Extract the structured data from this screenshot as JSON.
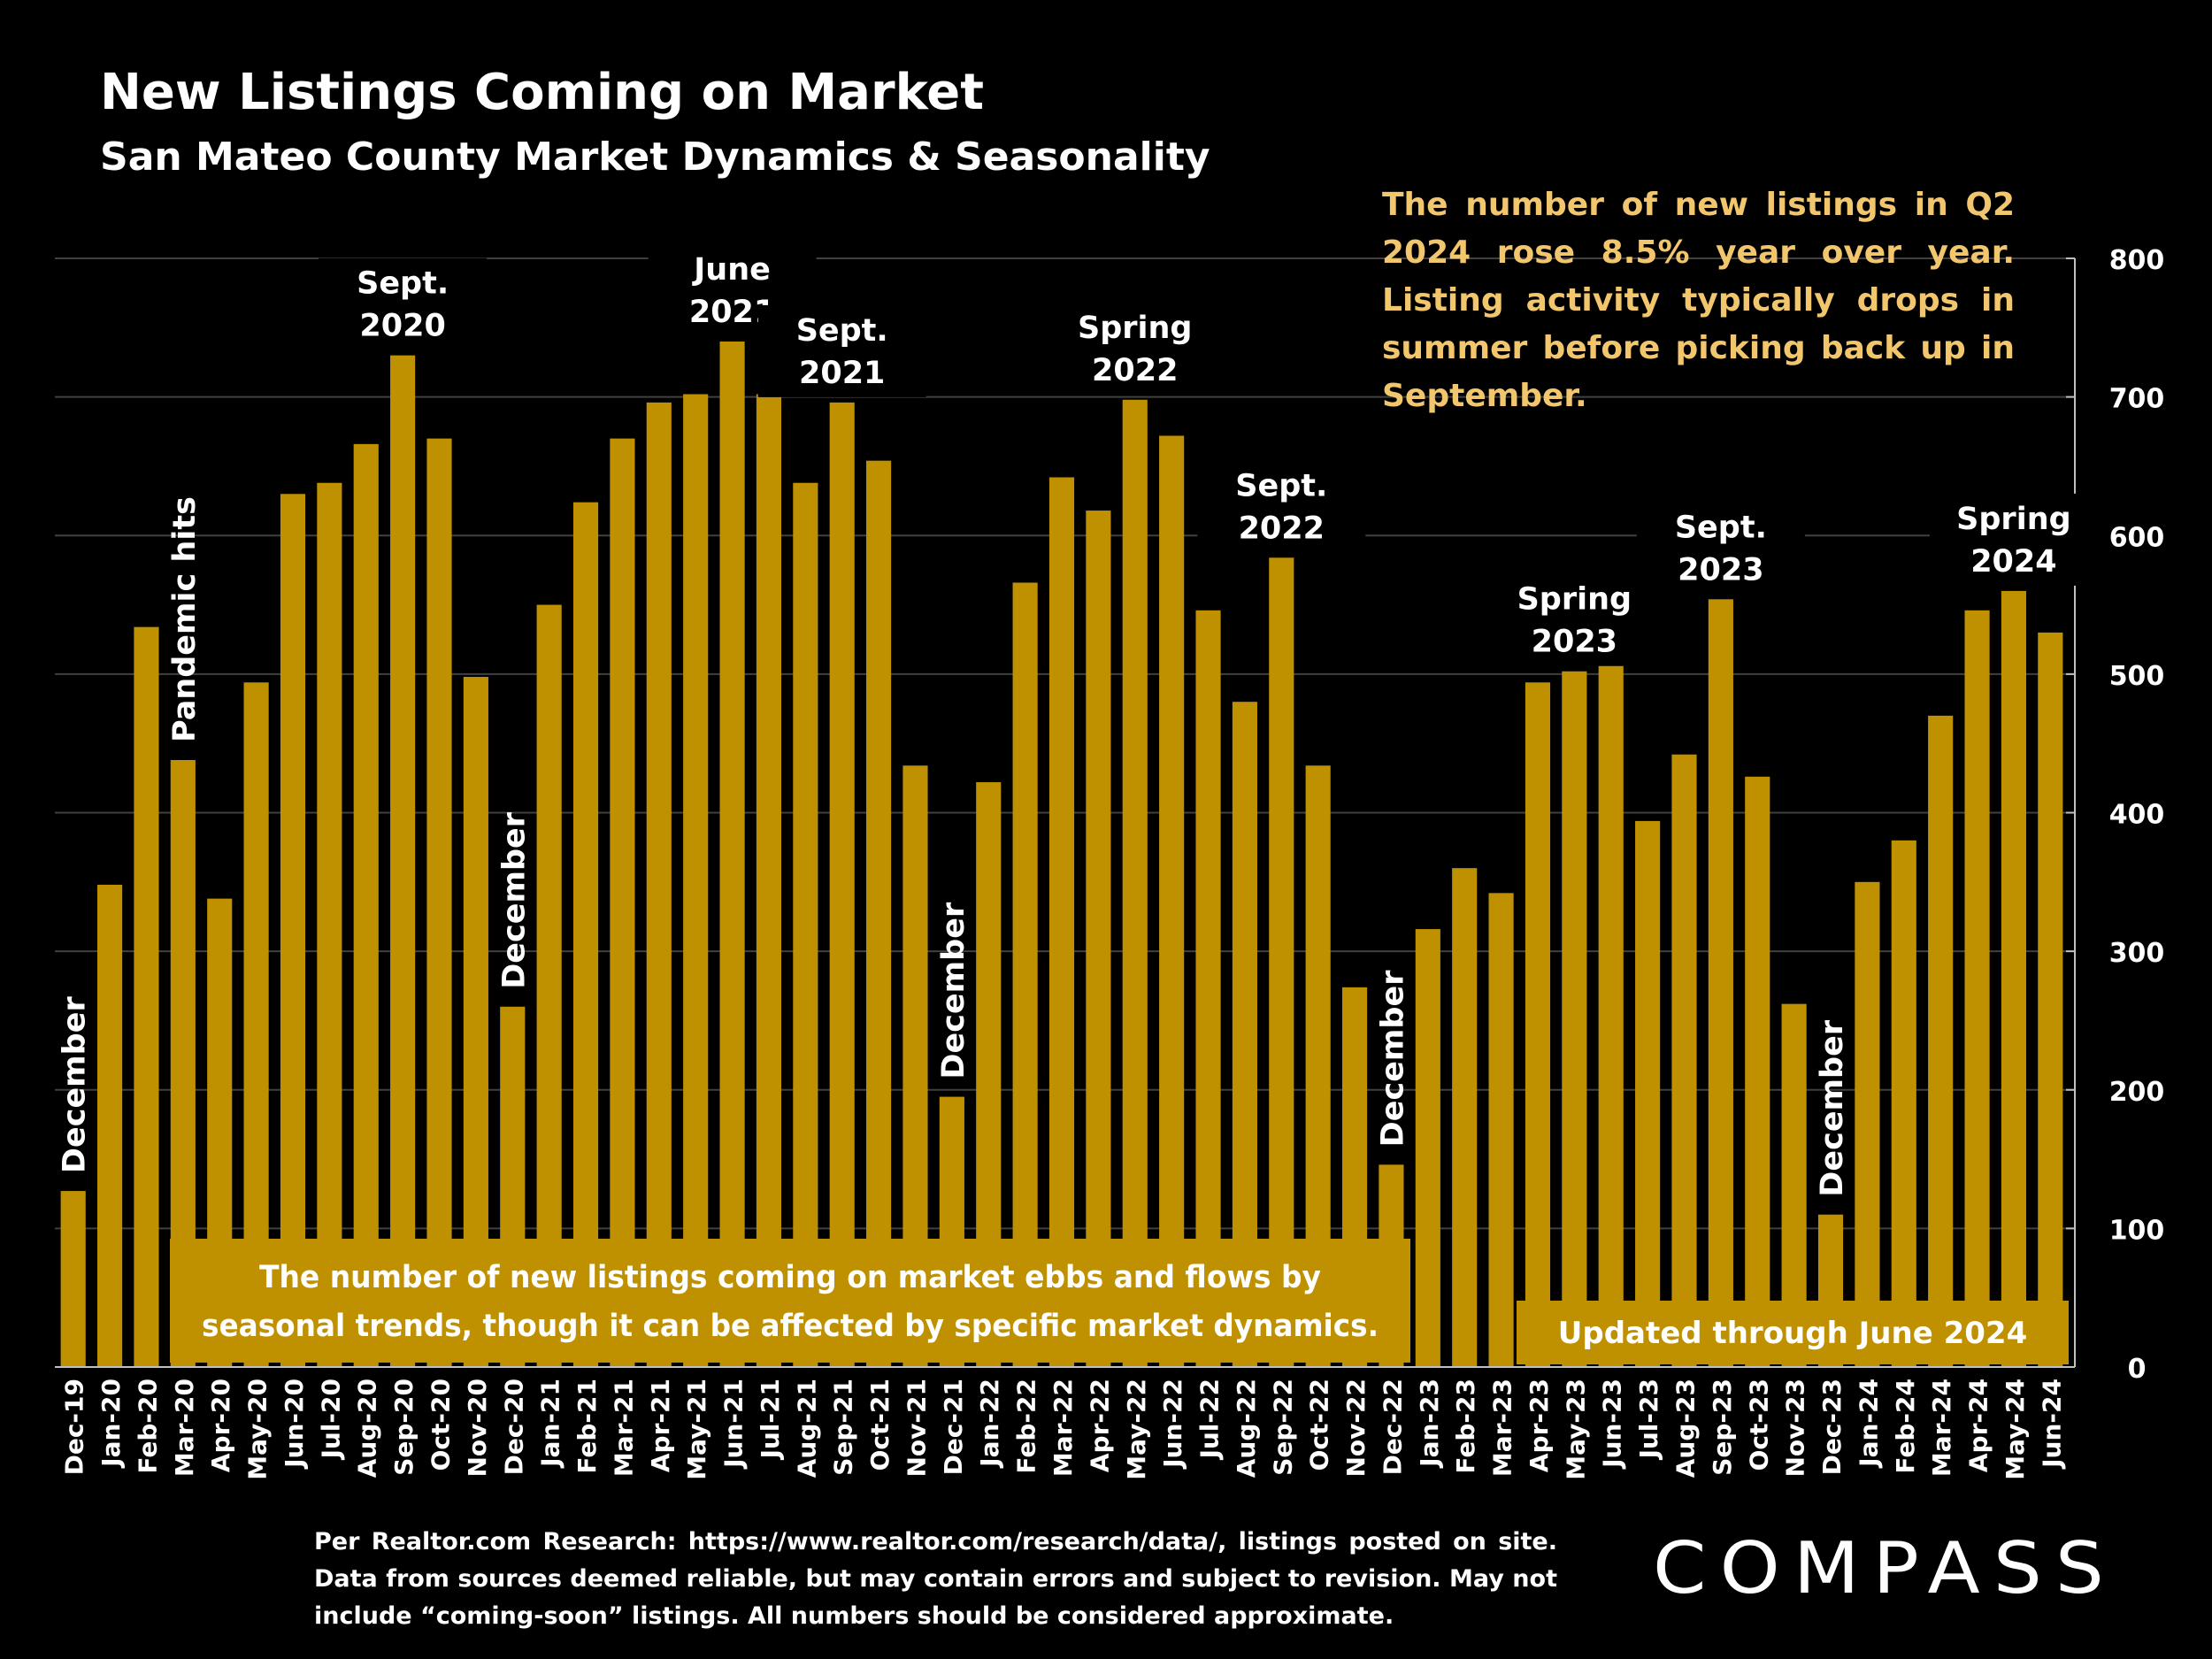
{
  "header": {
    "title": "New Listings Coming on Market",
    "subtitle": "San Mateo County Market Dynamics & Seasonality"
  },
  "commentary": "The number of new listings in Q2 2024 rose 8.5% year over year. Listing activity typically drops in summer before picking back up in September.",
  "footnote": "Per Realtor.com Research: https://www.realtor.com/research/data/, listings posted on site. Data from sources deemed reliable, but may contain errors and subject to revision. May not include “coming-soon” listings. All numbers should be considered approximate.",
  "logo_text": "COMPASS",
  "colors": {
    "background": "#000000",
    "bar": "#bf9000",
    "text": "#ffffff",
    "commentary": "#f2c66d",
    "gridline": "#404040"
  },
  "chart_data": {
    "type": "bar",
    "title": "New Listings Coming on Market",
    "xlabel": "",
    "ylabel": "",
    "ylim": [
      0,
      800
    ],
    "yticks": [
      0,
      100,
      200,
      300,
      400,
      500,
      600,
      700,
      800
    ],
    "y_axis_side": "right",
    "grid": true,
    "categories": [
      "Dec-19",
      "Jan-20",
      "Feb-20",
      "Mar-20",
      "Apr-20",
      "May-20",
      "Jun-20",
      "Jul-20",
      "Aug-20",
      "Sep-20",
      "Oct-20",
      "Nov-20",
      "Dec-20",
      "Jan-21",
      "Feb-21",
      "Mar-21",
      "Apr-21",
      "May-21",
      "Jun-21",
      "Jul-21",
      "Aug-21",
      "Sep-21",
      "Oct-21",
      "Nov-21",
      "Dec-21",
      "Jan-22",
      "Feb-22",
      "Mar-22",
      "Apr-22",
      "May-22",
      "Jun-22",
      "Jul-22",
      "Aug-22",
      "Sep-22",
      "Oct-22",
      "Nov-22",
      "Dec-22",
      "Jan-23",
      "Feb-23",
      "Mar-23",
      "Apr-23",
      "May-23",
      "Jun-23",
      "Jul-23",
      "Aug-23",
      "Sep-23",
      "Oct-23",
      "Nov-23",
      "Dec-23",
      "Jan-24",
      "Feb-24",
      "Mar-24",
      "Apr-24",
      "May-24",
      "Jun-24"
    ],
    "values": [
      127,
      348,
      534,
      438,
      338,
      494,
      630,
      638,
      666,
      730,
      670,
      498,
      260,
      550,
      624,
      670,
      696,
      702,
      740,
      702,
      638,
      696,
      654,
      434,
      195,
      422,
      566,
      642,
      618,
      698,
      672,
      546,
      480,
      584,
      434,
      274,
      146,
      316,
      360,
      342,
      494,
      502,
      512,
      394,
      442,
      554,
      426,
      262,
      110,
      350,
      380,
      470,
      546,
      560,
      530
    ],
    "annotations": [
      {
        "text": "December",
        "category": "Dec-19",
        "orientation": "vertical"
      },
      {
        "text": "Pandemic hits",
        "category": "Mar-20",
        "orientation": "vertical"
      },
      {
        "text": "Sept. 2020",
        "category": "Sep-20",
        "orientation": "horizontal"
      },
      {
        "text": "December",
        "category": "Dec-20",
        "orientation": "vertical"
      },
      {
        "text": "June 2021",
        "category": "Jun-21",
        "orientation": "horizontal"
      },
      {
        "text": "Sept. 2021",
        "category": "Sep-21",
        "orientation": "horizontal"
      },
      {
        "text": "December",
        "category": "Dec-21",
        "orientation": "vertical"
      },
      {
        "text": "Spring 2022",
        "category": "May-22",
        "orientation": "horizontal"
      },
      {
        "text": "Sept. 2022",
        "category": "Sep-22",
        "orientation": "horizontal"
      },
      {
        "text": "December",
        "category": "Dec-22",
        "orientation": "vertical"
      },
      {
        "text": "Spring 2023",
        "category": "May-23",
        "orientation": "horizontal"
      },
      {
        "text": "Sept. 2023",
        "category": "Sep-23",
        "orientation": "horizontal"
      },
      {
        "text": "December",
        "category": "Dec-23",
        "orientation": "vertical"
      },
      {
        "text": "Spring 2024",
        "category": "May-24",
        "orientation": "horizontal"
      }
    ],
    "callouts": [
      {
        "text": "The number of new listings coming on market ebbs and flows by seasonal trends, though it can be affected by specific market dynamics."
      },
      {
        "text": "Updated through June 2024"
      }
    ]
  }
}
